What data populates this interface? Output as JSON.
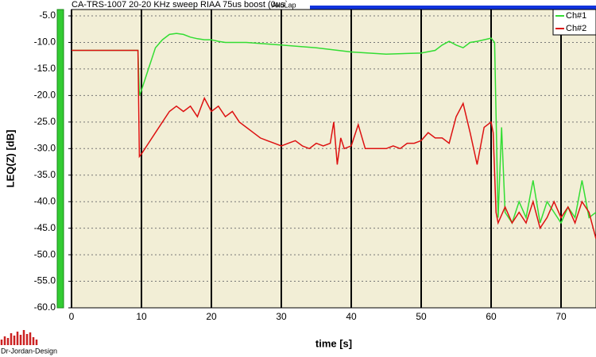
{
  "chart_data": {
    "type": "line",
    "title": "CA-TRS-1007 20-20 KHz sweep RIAA 75us boost (0us`",
    "title_suffix": "AkuLap",
    "x_label": "time [s]",
    "y_label": "LEQ(Z) [dB]",
    "logo_text": "Dr-Jordan-Design",
    "xlim": [
      0,
      75
    ],
    "ylim": [
      -60,
      -3.8
    ],
    "xticks": [
      0,
      10,
      20,
      30,
      40,
      50,
      60,
      70
    ],
    "yticks": [
      {
        "value": -5,
        "label": "-5.0"
      },
      {
        "value": -10,
        "label": "-10.0"
      },
      {
        "value": -15,
        "label": "-15.0"
      },
      {
        "value": -20,
        "label": "-20.0"
      },
      {
        "value": -25,
        "label": "-25.0"
      },
      {
        "value": -30,
        "label": "-30.0"
      },
      {
        "value": -35,
        "label": "-35.0"
      },
      {
        "value": -40,
        "label": "-40.0"
      },
      {
        "value": -45,
        "label": "-45.0"
      },
      {
        "value": -50,
        "label": "-50.0"
      },
      {
        "value": -55,
        "label": "-55.0"
      },
      {
        "value": -60,
        "label": "-60.0"
      }
    ],
    "grid": true,
    "legend": "top-right",
    "series": [
      {
        "name": "Ch#1",
        "color": "#33dd33",
        "x": [
          0,
          9.5,
          9.7,
          10,
          11,
          12,
          13,
          14,
          15,
          16,
          17,
          18,
          19,
          20,
          21,
          22,
          25,
          30,
          35,
          40,
          45,
          50,
          52,
          53,
          54,
          55,
          56,
          57,
          58,
          59,
          60,
          60.5,
          61,
          61.5,
          62,
          63,
          64,
          65,
          66,
          67,
          68,
          69,
          70,
          71,
          72,
          73,
          74,
          75
        ],
        "values": [
          -11.5,
          -11.5,
          -20,
          -19,
          -15,
          -11,
          -9.5,
          -8.5,
          -8.3,
          -8.5,
          -9,
          -9.3,
          -9.5,
          -9.5,
          -9.8,
          -10,
          -10,
          -10.5,
          -11,
          -11.8,
          -12.2,
          -12,
          -11.5,
          -10.5,
          -9.8,
          -10.5,
          -11,
          -10,
          -9.8,
          -9.5,
          -9.2,
          -10,
          -43,
          -26,
          -42,
          -44,
          -40,
          -43,
          -36,
          -44,
          -40,
          -42,
          -44,
          -41,
          -43,
          -36,
          -43,
          -42
        ]
      },
      {
        "name": "Ch#2",
        "color": "#dd1111",
        "x": [
          0,
          9.5,
          9.7,
          10,
          11,
          12,
          13,
          14,
          15,
          16,
          17,
          18,
          19,
          20,
          21,
          22,
          23,
          24,
          25,
          26,
          27,
          28,
          29,
          30,
          31,
          32,
          33,
          34,
          35,
          36,
          37,
          37.5,
          38,
          38.5,
          39,
          40,
          41,
          42,
          43,
          44,
          45,
          46,
          47,
          48,
          49,
          50,
          51,
          52,
          53,
          54,
          55,
          56,
          57,
          58,
          59,
          60,
          60.3,
          60.7,
          61,
          62,
          63,
          64,
          65,
          66,
          67,
          68,
          69,
          70,
          71,
          72,
          73,
          74,
          75
        ],
        "values": [
          -11.5,
          -11.5,
          -31.5,
          -31,
          -29,
          -27,
          -25,
          -23,
          -22,
          -23,
          -22,
          -24,
          -20.5,
          -23,
          -22,
          -24,
          -23,
          -25,
          -26,
          -27,
          -28,
          -28.5,
          -29,
          -29.5,
          -29,
          -28.5,
          -29.5,
          -30,
          -29,
          -29.5,
          -29,
          -25,
          -33,
          -28,
          -30,
          -29.5,
          -25.5,
          -30,
          -30,
          -30,
          -30,
          -29.5,
          -30,
          -29,
          -29,
          -28.5,
          -27,
          -28,
          -28,
          -29,
          -24,
          -21.5,
          -27,
          -33,
          -26,
          -25,
          -27,
          -42,
          -44,
          -41,
          -44,
          -42,
          -44,
          -40,
          -45,
          -43,
          -40,
          -43,
          -41,
          -44,
          -40,
          -42,
          -47
        ]
      }
    ]
  }
}
